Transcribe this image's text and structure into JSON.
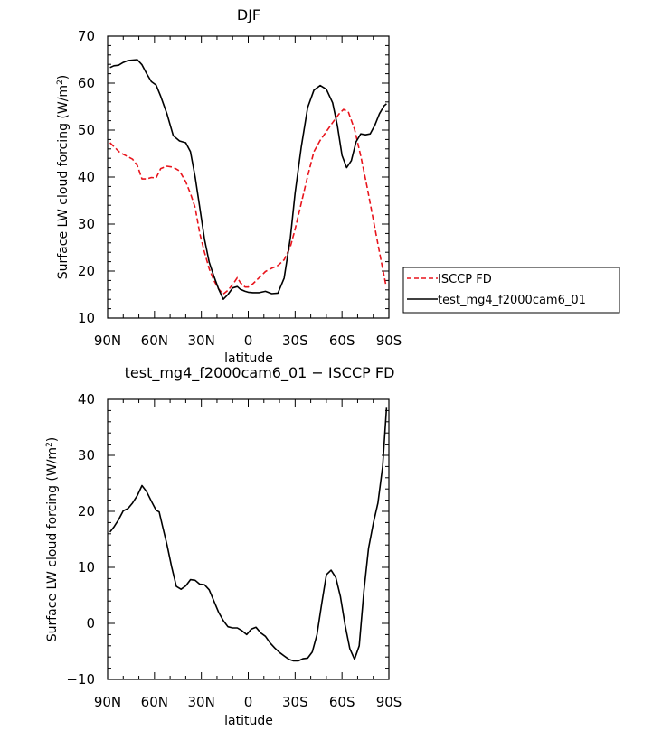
{
  "chart_data": [
    {
      "type": "line",
      "title": "DJF",
      "xlabel": "latitude",
      "ylabel": "Surface LW cloud forcing (W/m²)",
      "xlim": [
        90,
        -90
      ],
      "ylim": [
        10,
        70
      ],
      "xticks": [
        90,
        60,
        30,
        0,
        -30,
        -60,
        -90
      ],
      "xtick_labels": [
        "90N",
        "60N",
        "30N",
        "0",
        "30S",
        "60S",
        "90S"
      ],
      "yticks": [
        10,
        20,
        30,
        40,
        50,
        60,
        70
      ],
      "ytick_labels": [
        "10",
        "20",
        "30",
        "40",
        "50",
        "60",
        "70"
      ],
      "grid": false,
      "legend_position": "right",
      "series": [
        {
          "name": "ISCCP FD",
          "color": "#e8141c",
          "dash": "dashed",
          "x": [
            88.5,
            86,
            82,
            78,
            74,
            71,
            68,
            65,
            62,
            59,
            56,
            52,
            48,
            44,
            40,
            37,
            34,
            31,
            28,
            25,
            22,
            19,
            16,
            13,
            10,
            7,
            5,
            2,
            0,
            -3,
            -7,
            -11,
            -15,
            -19,
            -23,
            -27,
            -30,
            -34,
            -38,
            -42,
            -46,
            -50,
            -54,
            -58,
            -61,
            -64,
            -68,
            -72,
            -76,
            -80,
            -84,
            -88
          ],
          "y": [
            47.3,
            46.5,
            45.2,
            44.5,
            43.8,
            42.5,
            39.6,
            39.6,
            39.9,
            39.8,
            41.8,
            42.3,
            42.1,
            41.3,
            39,
            36.5,
            33.5,
            28,
            24,
            20.5,
            18,
            16.2,
            15.1,
            15.9,
            17.1,
            18.6,
            17.5,
            16.6,
            16.6,
            17.3,
            18.6,
            19.9,
            20.6,
            21.2,
            22.4,
            25.2,
            28.9,
            34.5,
            40.2,
            45.4,
            47.8,
            49.7,
            51.6,
            53.4,
            54.4,
            53.9,
            50.2,
            44.5,
            38,
            31,
            24,
            17.2
          ]
        },
        {
          "name": "test_mg4_f2000cam6_01",
          "color": "#000000",
          "dash": "solid",
          "x": [
            88.5,
            86,
            83,
            80,
            77,
            74,
            71,
            68,
            65,
            62,
            59,
            56,
            52,
            48,
            44,
            40,
            37,
            34,
            31,
            28,
            25,
            22,
            19,
            16,
            13,
            10,
            7,
            5,
            2,
            0,
            -3,
            -7,
            -11,
            -15,
            -19,
            -23,
            -27,
            -30,
            -34,
            -38,
            -42,
            -46,
            -50,
            -54,
            -57,
            -60,
            -63,
            -66,
            -69,
            -72,
            -75,
            -78,
            -81,
            -84,
            -87,
            -88.5
          ],
          "y": [
            63.3,
            63.7,
            63.8,
            64.4,
            64.8,
            64.9,
            65,
            63.9,
            62,
            60.3,
            59.6,
            57.2,
            53.4,
            48.8,
            47.7,
            47.3,
            45.4,
            40,
            33.5,
            26.8,
            21.9,
            18.9,
            16.2,
            14,
            15,
            16.4,
            16.7,
            16.1,
            15.7,
            15.5,
            15.4,
            15.4,
            15.7,
            15.2,
            15.3,
            18.5,
            27.1,
            36.6,
            46.5,
            54.8,
            58.5,
            59.5,
            58.7,
            55.8,
            51,
            44.6,
            42,
            43.5,
            47.5,
            49.2,
            49,
            49.2,
            51,
            53.5,
            55.2,
            55.6
          ]
        }
      ]
    },
    {
      "type": "line",
      "title": "test_mg4_f2000cam6_01 − ISCCP FD",
      "xlabel": "latitude",
      "ylabel": "Surface LW cloud forcing (W/m²)",
      "xlim": [
        90,
        -90
      ],
      "ylim": [
        -10,
        40
      ],
      "xticks": [
        90,
        60,
        30,
        0,
        -30,
        -60,
        -90
      ],
      "xtick_labels": [
        "90N",
        "60N",
        "30N",
        "0",
        "30S",
        "60S",
        "90S"
      ],
      "yticks": [
        -10,
        0,
        10,
        20,
        30,
        40
      ],
      "ytick_labels": [
        "−10",
        "0",
        "10",
        "20",
        "30",
        "40"
      ],
      "grid": false,
      "series": [
        {
          "color": "#000000",
          "dash": "solid",
          "x": [
            88.5,
            86,
            83,
            80,
            77,
            74,
            71,
            68,
            65,
            62,
            59,
            57,
            55,
            52,
            49,
            46,
            43,
            40,
            37,
            34,
            31,
            28,
            25,
            22,
            19,
            16,
            13,
            10,
            7,
            4,
            1,
            -2,
            -5,
            -8,
            -11,
            -14,
            -17,
            -20,
            -23,
            -26,
            -29,
            -32,
            -35,
            -38,
            -41,
            -44,
            -47,
            -50,
            -53,
            -56,
            -59,
            -62,
            -65,
            -68,
            -71,
            -74,
            -77,
            -80,
            -83,
            -86,
            -88.5
          ],
          "y": [
            16.3,
            17.2,
            18.5,
            20.1,
            20.5,
            21.5,
            22.8,
            24.6,
            23.5,
            21.8,
            20.2,
            19.9,
            17.5,
            14,
            10.1,
            6.6,
            6.1,
            6.7,
            7.8,
            7.7,
            7,
            6.9,
            6,
            4,
            2,
            0.5,
            -0.6,
            -0.8,
            -0.8,
            -1.3,
            -2,
            -1,
            -0.7,
            -1.7,
            -2.3,
            -3.5,
            -4.4,
            -5.2,
            -5.8,
            -6.4,
            -6.7,
            -6.7,
            -6.3,
            -6.2,
            -5.1,
            -2,
            3.5,
            8.7,
            9.5,
            8.2,
            4.8,
            -0.3,
            -4.5,
            -6.4,
            -4,
            5.8,
            13.4,
            17.8,
            21.5,
            28,
            38.5
          ]
        }
      ]
    }
  ]
}
